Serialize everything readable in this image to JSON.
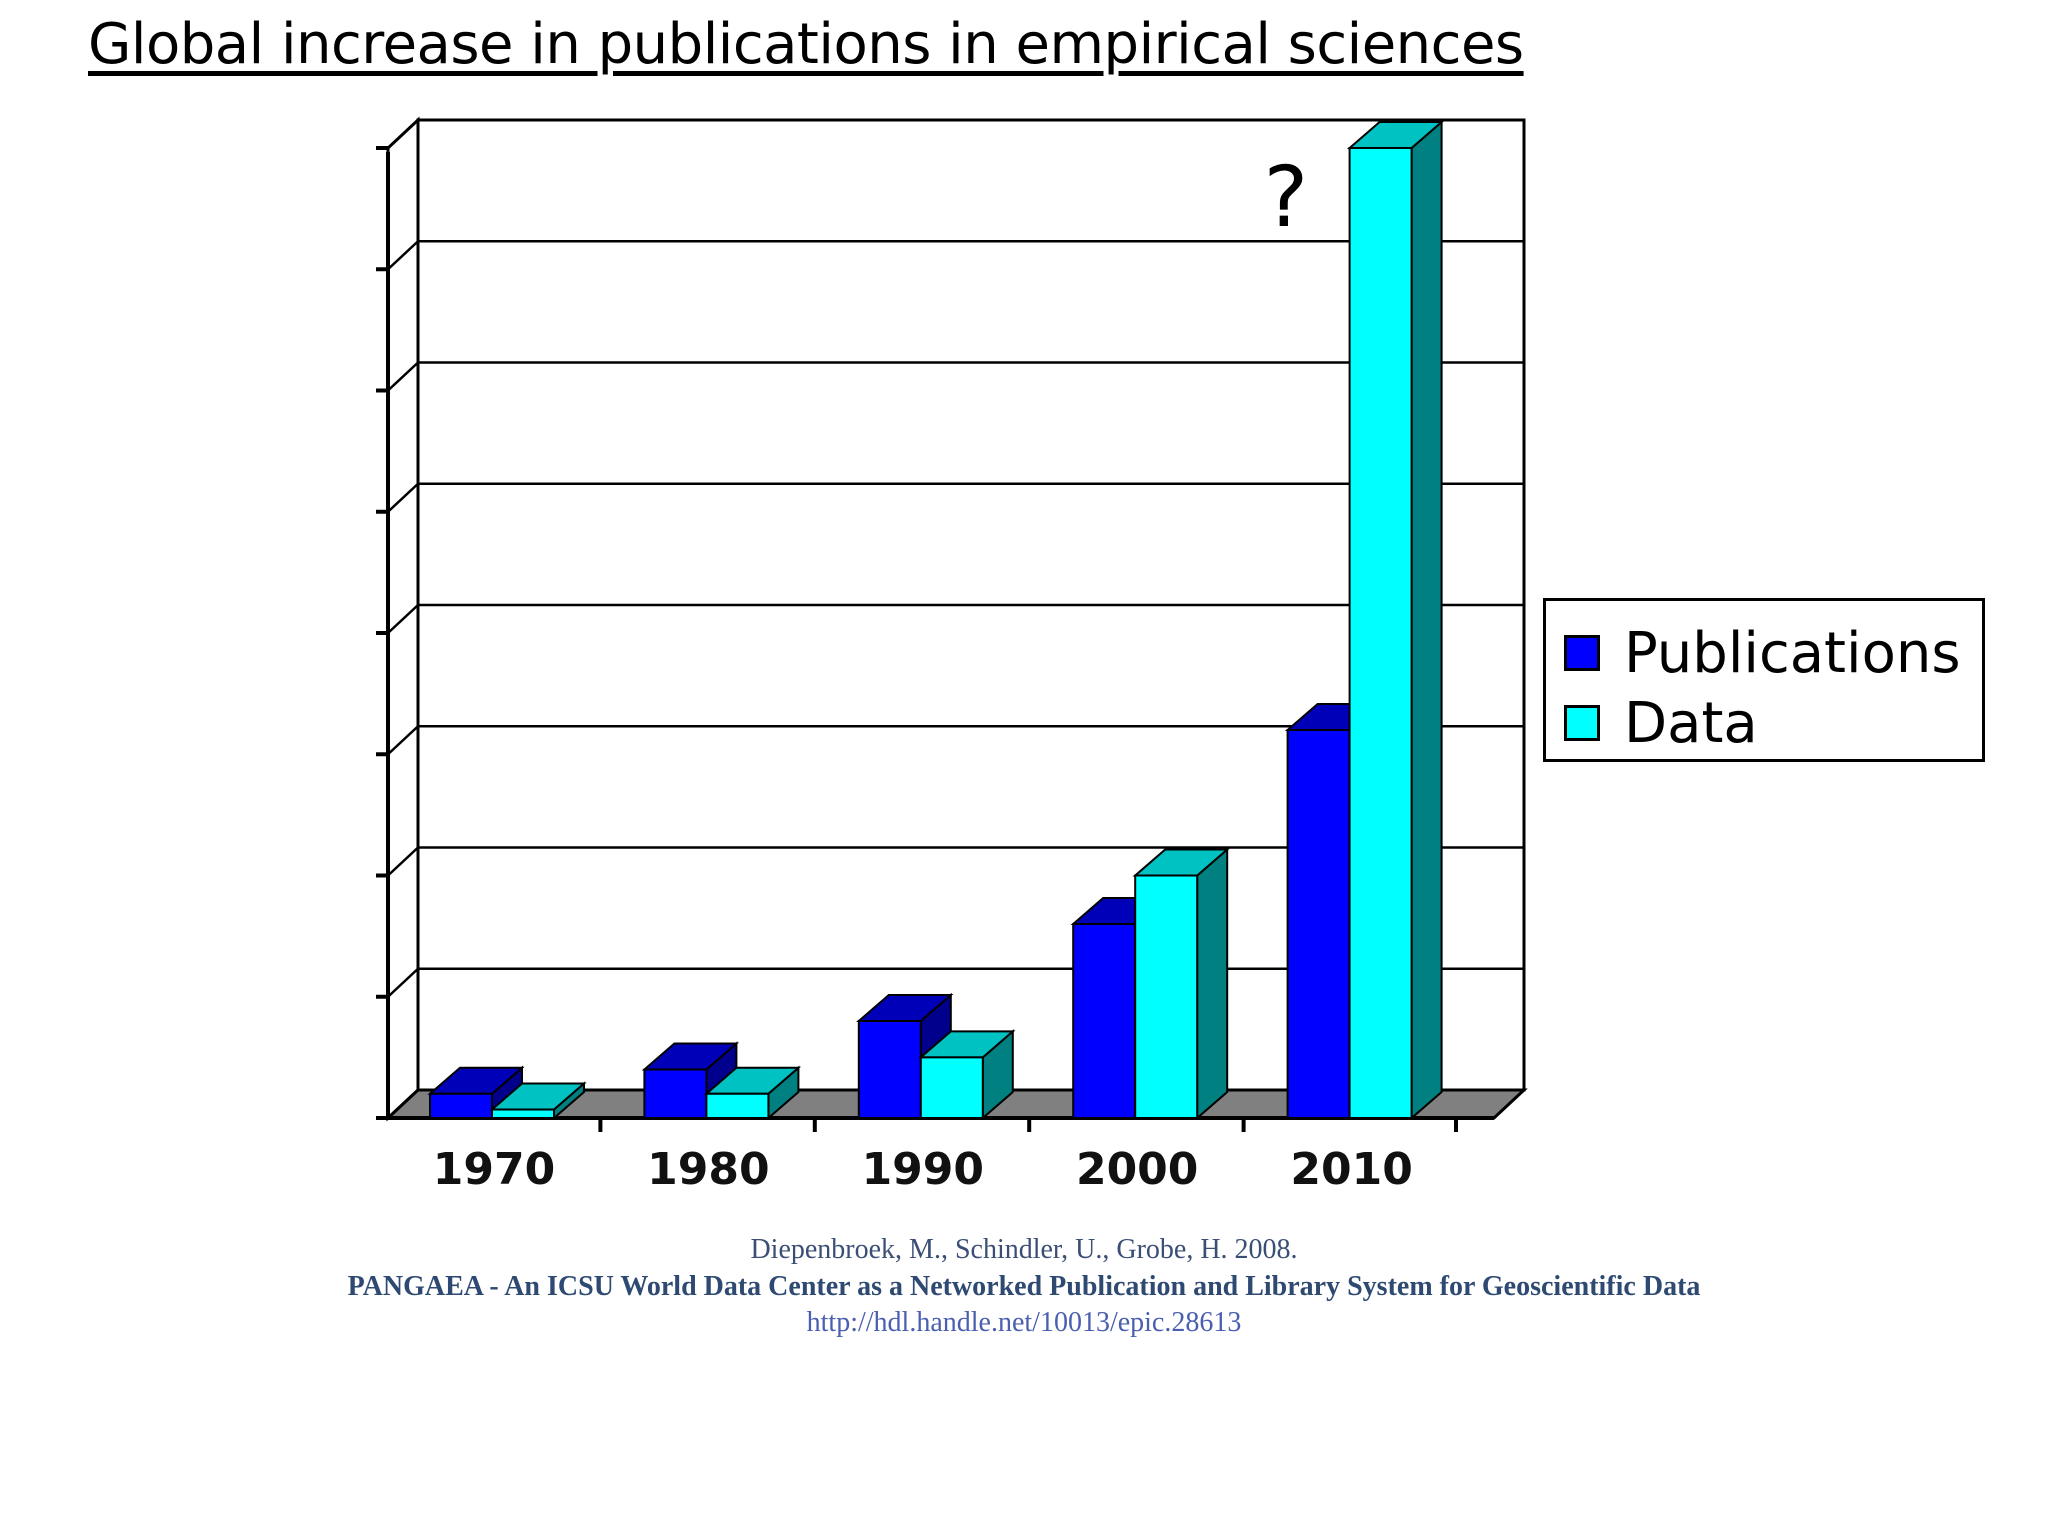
{
  "title": "Global increase in publications in empirical sciences",
  "chart_data": {
    "type": "bar",
    "categories": [
      "1970",
      "1980",
      "1990",
      "2000",
      "2010"
    ],
    "series": [
      {
        "name": "Publications",
        "values": [
          0.2,
          0.4,
          0.8,
          1.6,
          3.2
        ]
      },
      {
        "name": "Data",
        "values": [
          0.07,
          0.2,
          0.5,
          2.0,
          8.0
        ]
      }
    ],
    "ylim": [
      0,
      8
    ],
    "yticks": 9,
    "grid": true,
    "legend": "right",
    "colors": {
      "publications": "#0000ff",
      "data": "#00ffff"
    },
    "annotation": {
      "text": "?",
      "category": "2010"
    }
  },
  "citation": {
    "authors": "Diepenbroek, M., Schindler, U., Grobe, H. 2008.",
    "title": "PANGAEA - An ICSU World Data Center as a Networked Publication and Library System for Geoscientific Data",
    "url": "http://hdl.handle.net/10013/epic.28613"
  }
}
